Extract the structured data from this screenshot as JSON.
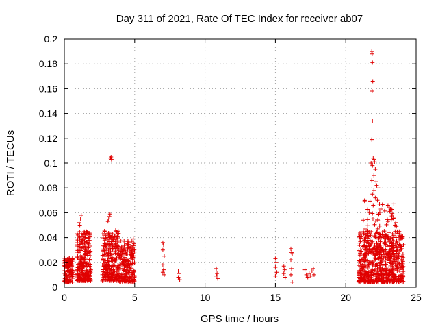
{
  "chart_data": {
    "type": "scatter",
    "title": "Day 311 of 2021, Rate Of TEC Index for receiver ab07",
    "xlabel": "GPS time / hours",
    "ylabel": "ROTI / TECUs",
    "xlim": [
      0,
      25
    ],
    "ylim": [
      0,
      0.2
    ],
    "xticks": [
      0,
      5,
      10,
      15,
      20,
      25
    ],
    "yticks": [
      0,
      0.02,
      0.04,
      0.06,
      0.08,
      0.1,
      0.12,
      0.14,
      0.16,
      0.18,
      0.2
    ],
    "xtick_labels": [
      "0",
      "5",
      "10",
      "15",
      "20",
      "25"
    ],
    "ytick_labels": [
      "0",
      "0.02",
      "0.04",
      "0.06",
      "0.08",
      "0.1",
      "0.12",
      "0.14",
      "0.16",
      "0.18",
      "0.2"
    ],
    "grid": true,
    "marker": "+",
    "color": "#e00000",
    "clusters": [
      {
        "x_range": [
          0.0,
          0.6
        ],
        "y_range": [
          0.004,
          0.024
        ],
        "count": 120
      },
      {
        "x_range": [
          0.9,
          1.9
        ],
        "y_range": [
          0.005,
          0.046
        ],
        "count": 260
      },
      {
        "x_range": [
          2.7,
          3.9
        ],
        "y_range": [
          0.005,
          0.046
        ],
        "count": 260
      },
      {
        "x_range": [
          3.9,
          5.0
        ],
        "y_range": [
          0.004,
          0.038
        ],
        "count": 200
      },
      {
        "x_range": [
          20.9,
          24.1
        ],
        "y_range": [
          0.004,
          0.045
        ],
        "count": 650
      },
      {
        "x_range": [
          21.3,
          23.6
        ],
        "y_range": [
          0.03,
          0.07
        ],
        "count": 70
      }
    ],
    "points": [
      {
        "x": 0.05,
        "y": 0.022
      },
      {
        "x": 0.3,
        "y": 0.023
      },
      {
        "x": 1.05,
        "y": 0.052
      },
      {
        "x": 1.15,
        "y": 0.055
      },
      {
        "x": 1.2,
        "y": 0.058
      },
      {
        "x": 1.1,
        "y": 0.05
      },
      {
        "x": 3.15,
        "y": 0.055
      },
      {
        "x": 3.2,
        "y": 0.057
      },
      {
        "x": 3.25,
        "y": 0.059
      },
      {
        "x": 3.1,
        "y": 0.053
      },
      {
        "x": 3.28,
        "y": 0.104
      },
      {
        "x": 3.32,
        "y": 0.105
      },
      {
        "x": 3.35,
        "y": 0.103
      },
      {
        "x": 4.9,
        "y": 0.039
      },
      {
        "x": 4.95,
        "y": 0.035
      },
      {
        "x": 7.0,
        "y": 0.036
      },
      {
        "x": 7.05,
        "y": 0.034
      },
      {
        "x": 7.0,
        "y": 0.03
      },
      {
        "x": 7.1,
        "y": 0.025
      },
      {
        "x": 7.0,
        "y": 0.018
      },
      {
        "x": 7.05,
        "y": 0.014
      },
      {
        "x": 7.0,
        "y": 0.012
      },
      {
        "x": 7.1,
        "y": 0.01
      },
      {
        "x": 8.1,
        "y": 0.013
      },
      {
        "x": 8.15,
        "y": 0.011
      },
      {
        "x": 8.1,
        "y": 0.008
      },
      {
        "x": 8.2,
        "y": 0.006
      },
      {
        "x": 10.8,
        "y": 0.015
      },
      {
        "x": 10.85,
        "y": 0.011
      },
      {
        "x": 10.8,
        "y": 0.009
      },
      {
        "x": 10.9,
        "y": 0.007
      },
      {
        "x": 15.0,
        "y": 0.023
      },
      {
        "x": 15.05,
        "y": 0.02
      },
      {
        "x": 15.0,
        "y": 0.016
      },
      {
        "x": 15.1,
        "y": 0.012
      },
      {
        "x": 15.0,
        "y": 0.009
      },
      {
        "x": 15.6,
        "y": 0.017
      },
      {
        "x": 15.65,
        "y": 0.014
      },
      {
        "x": 15.6,
        "y": 0.011
      },
      {
        "x": 15.7,
        "y": 0.008
      },
      {
        "x": 16.1,
        "y": 0.031
      },
      {
        "x": 16.15,
        "y": 0.028
      },
      {
        "x": 16.2,
        "y": 0.027
      },
      {
        "x": 16.1,
        "y": 0.022
      },
      {
        "x": 16.15,
        "y": 0.015
      },
      {
        "x": 16.1,
        "y": 0.01
      },
      {
        "x": 16.2,
        "y": 0.004
      },
      {
        "x": 17.1,
        "y": 0.014
      },
      {
        "x": 17.2,
        "y": 0.01
      },
      {
        "x": 17.3,
        "y": 0.008
      },
      {
        "x": 17.4,
        "y": 0.011
      },
      {
        "x": 17.5,
        "y": 0.009
      },
      {
        "x": 17.6,
        "y": 0.013
      },
      {
        "x": 17.7,
        "y": 0.015
      },
      {
        "x": 17.75,
        "y": 0.01
      },
      {
        "x": 21.25,
        "y": 0.054
      },
      {
        "x": 21.85,
        "y": 0.19
      },
      {
        "x": 21.88,
        "y": 0.188
      },
      {
        "x": 21.9,
        "y": 0.181
      },
      {
        "x": 21.92,
        "y": 0.166
      },
      {
        "x": 21.88,
        "y": 0.158
      },
      {
        "x": 21.9,
        "y": 0.134
      },
      {
        "x": 21.85,
        "y": 0.119
      },
      {
        "x": 21.8,
        "y": 0.1
      },
      {
        "x": 21.95,
        "y": 0.104
      },
      {
        "x": 22.0,
        "y": 0.103
      },
      {
        "x": 22.05,
        "y": 0.101
      },
      {
        "x": 21.9,
        "y": 0.098
      },
      {
        "x": 22.1,
        "y": 0.095
      },
      {
        "x": 22.0,
        "y": 0.09
      },
      {
        "x": 21.85,
        "y": 0.086
      },
      {
        "x": 22.15,
        "y": 0.085
      },
      {
        "x": 22.2,
        "y": 0.082
      },
      {
        "x": 22.0,
        "y": 0.078
      },
      {
        "x": 22.3,
        "y": 0.08
      },
      {
        "x": 21.9,
        "y": 0.075
      },
      {
        "x": 22.1,
        "y": 0.072
      },
      {
        "x": 22.25,
        "y": 0.07
      },
      {
        "x": 21.95,
        "y": 0.066
      },
      {
        "x": 22.4,
        "y": 0.067
      },
      {
        "x": 22.5,
        "y": 0.063
      },
      {
        "x": 23.0,
        "y": 0.066
      },
      {
        "x": 23.1,
        "y": 0.064
      },
      {
        "x": 23.2,
        "y": 0.062
      },
      {
        "x": 23.5,
        "y": 0.05
      },
      {
        "x": 23.55,
        "y": 0.052
      },
      {
        "x": 23.6,
        "y": 0.049
      },
      {
        "x": 23.0,
        "y": 0.053
      }
    ]
  }
}
